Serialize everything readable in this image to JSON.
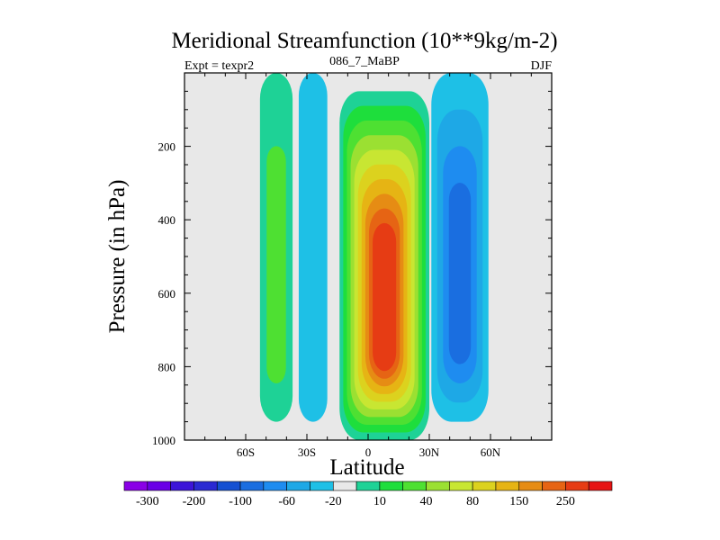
{
  "chart_data": {
    "type": "contour",
    "title": "Meridional Streamfunction (10**9kg/m-2)",
    "subtitle_left": "Expt = texpr2",
    "subtitle_center": "086_7_MaBP",
    "subtitle_right": "DJF",
    "xlabel": "Latitude",
    "ylabel": "Pressure (in hPa)",
    "x_range": [
      -90,
      90
    ],
    "y_range": [
      0,
      1000
    ],
    "y_inverted": true,
    "x_ticks": [
      {
        "value": -60,
        "label": "60S"
      },
      {
        "value": -30,
        "label": "30S"
      },
      {
        "value": 0,
        "label": "0"
      },
      {
        "value": 30,
        "label": "30N"
      },
      {
        "value": 60,
        "label": "60N"
      }
    ],
    "y_ticks": [
      {
        "value": 200,
        "label": "200"
      },
      {
        "value": 400,
        "label": "400"
      },
      {
        "value": 600,
        "label": "600"
      },
      {
        "value": 800,
        "label": "800"
      },
      {
        "value": 1000,
        "label": "1000"
      }
    ],
    "background_color": "#e8e8e8",
    "colorbar": {
      "colors": [
        "#8a00e6",
        "#6a00e6",
        "#3c14d8",
        "#2a2ad2",
        "#1450d2",
        "#1a6ee0",
        "#1e8cf0",
        "#1ea8e6",
        "#1ec0e6",
        "#e8e8e8",
        "#1ed296",
        "#1ede3c",
        "#4ee032",
        "#9be032",
        "#c8e632",
        "#dcd21e",
        "#e6b414",
        "#e68c14",
        "#e66414",
        "#e63c14",
        "#e61414"
      ],
      "labels": [
        {
          "after_box": 1,
          "text": "-300"
        },
        {
          "after_box": 3,
          "text": "-200"
        },
        {
          "after_box": 5,
          "text": "-100"
        },
        {
          "after_box": 7,
          "text": "-60"
        },
        {
          "after_box": 9,
          "text": "-20"
        },
        {
          "after_box": 11,
          "text": "10"
        },
        {
          "after_box": 13,
          "text": "40"
        },
        {
          "after_box": 15,
          "text": "80"
        },
        {
          "after_box": 17,
          "text": "150"
        },
        {
          "after_box": 19,
          "text": "250"
        }
      ]
    },
    "features": [
      {
        "name": "sh-polar-positive-cell",
        "lat_center": -45,
        "lat_half_width": 8,
        "p_top": 0,
        "p_bottom": 950,
        "fill_levels": [
          "#1ed296",
          "#4ee032"
        ]
      },
      {
        "name": "sh-negative-cell",
        "lat_center": -27,
        "lat_half_width": 7,
        "p_top": 0,
        "p_bottom": 950,
        "fill_levels": [
          "#1ec0e6"
        ]
      },
      {
        "name": "hadley-positive-cell",
        "lat_center": 8,
        "lat_half_width": 22,
        "p_top": 50,
        "p_bottom": 1000,
        "fill_levels": [
          "#1ed296",
          "#1ede3c",
          "#4ee032",
          "#9be032",
          "#c8e632",
          "#dcd21e",
          "#e6b414",
          "#e68c14",
          "#e66414",
          "#e63c14"
        ]
      },
      {
        "name": "nh-negative-cell",
        "lat_center": 45,
        "lat_half_width": 14,
        "p_top": 0,
        "p_bottom": 950,
        "fill_levels": [
          "#1ec0e6",
          "#1ea8e6",
          "#1e8cf0",
          "#1a6ee0"
        ]
      }
    ]
  }
}
